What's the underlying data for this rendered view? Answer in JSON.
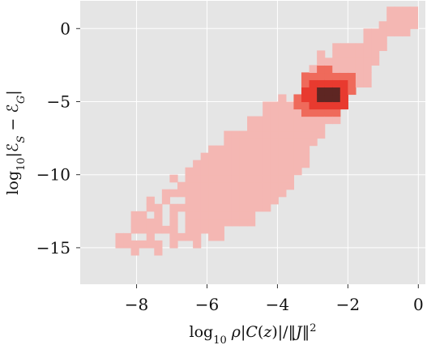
{
  "chart_data": {
    "type": "heatmap",
    "title": "",
    "xlabel": "log₁₀ ρ|C(z)|/‖J‖²",
    "ylabel": "log₁₀|ℰ_S − ℰ_G|",
    "xlim": [
      -9.6,
      0.2
    ],
    "ylim": [
      -17.5,
      1.9
    ],
    "x_ticks": [
      -8,
      -6,
      -4,
      -2,
      0
    ],
    "x_tick_labels": [
      "−8",
      "−6",
      "−4",
      "−2",
      "0"
    ],
    "y_ticks": [
      0,
      -5,
      -10,
      -15
    ],
    "y_tick_labels": [
      "0",
      "−5",
      "−10",
      "−15"
    ],
    "grid": true,
    "colors": {
      "background": "#e5e5e5",
      "grid": "#ffffff",
      "low_density": "#f4b7b3",
      "mid_density": "#ef6a5b",
      "high_density": "#e83a2f",
      "peak_density": "#5e2623"
    },
    "density_shape": {
      "main_trend": [
        {
          "x": -8.5,
          "y": -14.5
        },
        {
          "x": -7.0,
          "y": -13.0
        },
        {
          "x": -5.0,
          "y": -10.5
        },
        {
          "x": -3.5,
          "y": -7.5
        },
        {
          "x": -2.8,
          "y": -5.0
        },
        {
          "x": -1.5,
          "y": -2.5
        },
        {
          "x": -0.5,
          "y": 0.8
        }
      ],
      "peak": {
        "x": -2.7,
        "y": -4.7
      }
    }
  }
}
